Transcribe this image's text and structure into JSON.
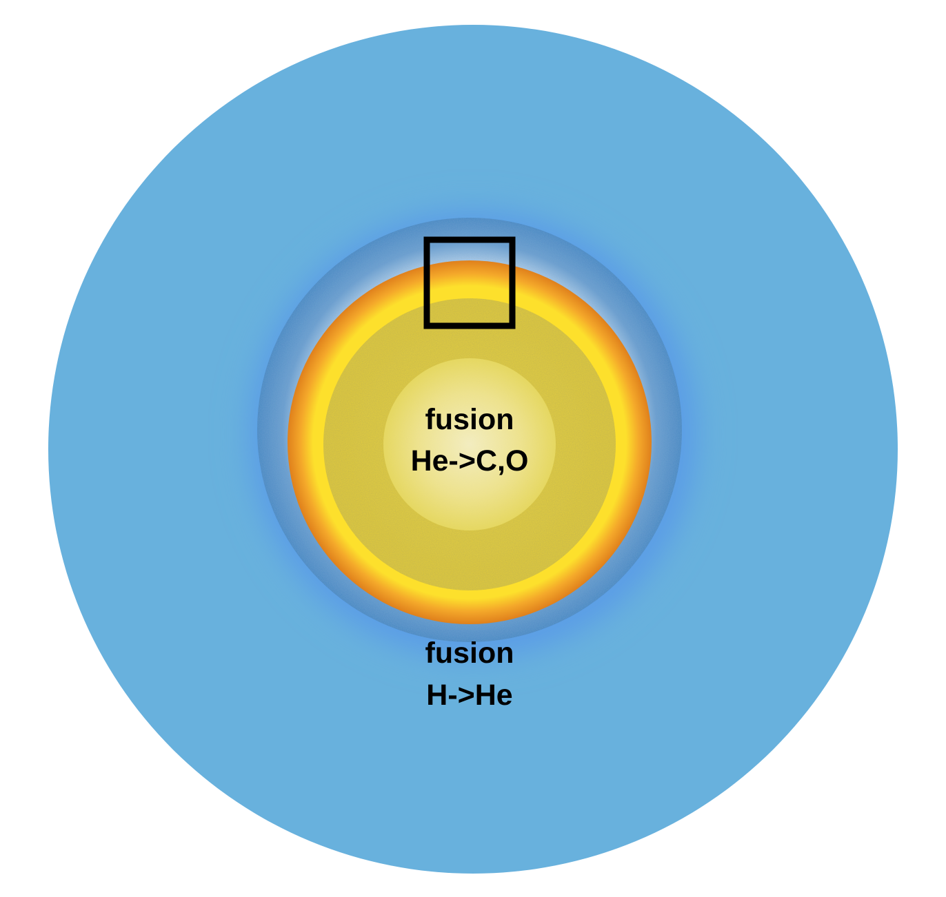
{
  "diagram": {
    "core_label": {
      "line1": "fusion",
      "line2": "He->C,O"
    },
    "shell_label": {
      "line1": "fusion",
      "line2": "H->He"
    }
  },
  "colors": {
    "envelope": "#68b1dd",
    "shell_glow": "#5b9ee6",
    "hydrogen_shell": "#4d8fc8",
    "orange_ring": "#e0861f",
    "yellow_ring": "#fde02c",
    "core": "#e4d24a",
    "core_center": "#f5eec0",
    "box": "#000000"
  }
}
